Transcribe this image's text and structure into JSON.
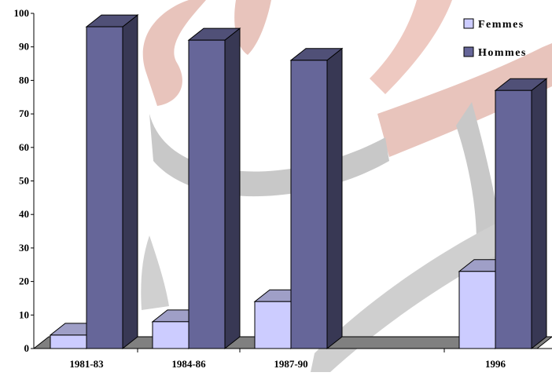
{
  "chart_data": {
    "type": "bar",
    "title": "",
    "xlabel": "",
    "ylabel": "",
    "ylim": [
      0,
      100
    ],
    "yticks": [
      0,
      10,
      20,
      30,
      40,
      50,
      60,
      70,
      80,
      90,
      100
    ],
    "categories": [
      "1981-83",
      "1984-86",
      "1987-90",
      "1996"
    ],
    "series": [
      {
        "name": "Femmes",
        "values": [
          4,
          8,
          14,
          23
        ],
        "color": "#ccccff"
      },
      {
        "name": "Hommes",
        "values": [
          96,
          92,
          86,
          77
        ],
        "color": "#666699"
      }
    ],
    "grid": false,
    "legend_position": "top-right",
    "bar_style": "3d",
    "floor_color": "#808080",
    "background_watermark": "decorative swirl (gray and pink)"
  }
}
